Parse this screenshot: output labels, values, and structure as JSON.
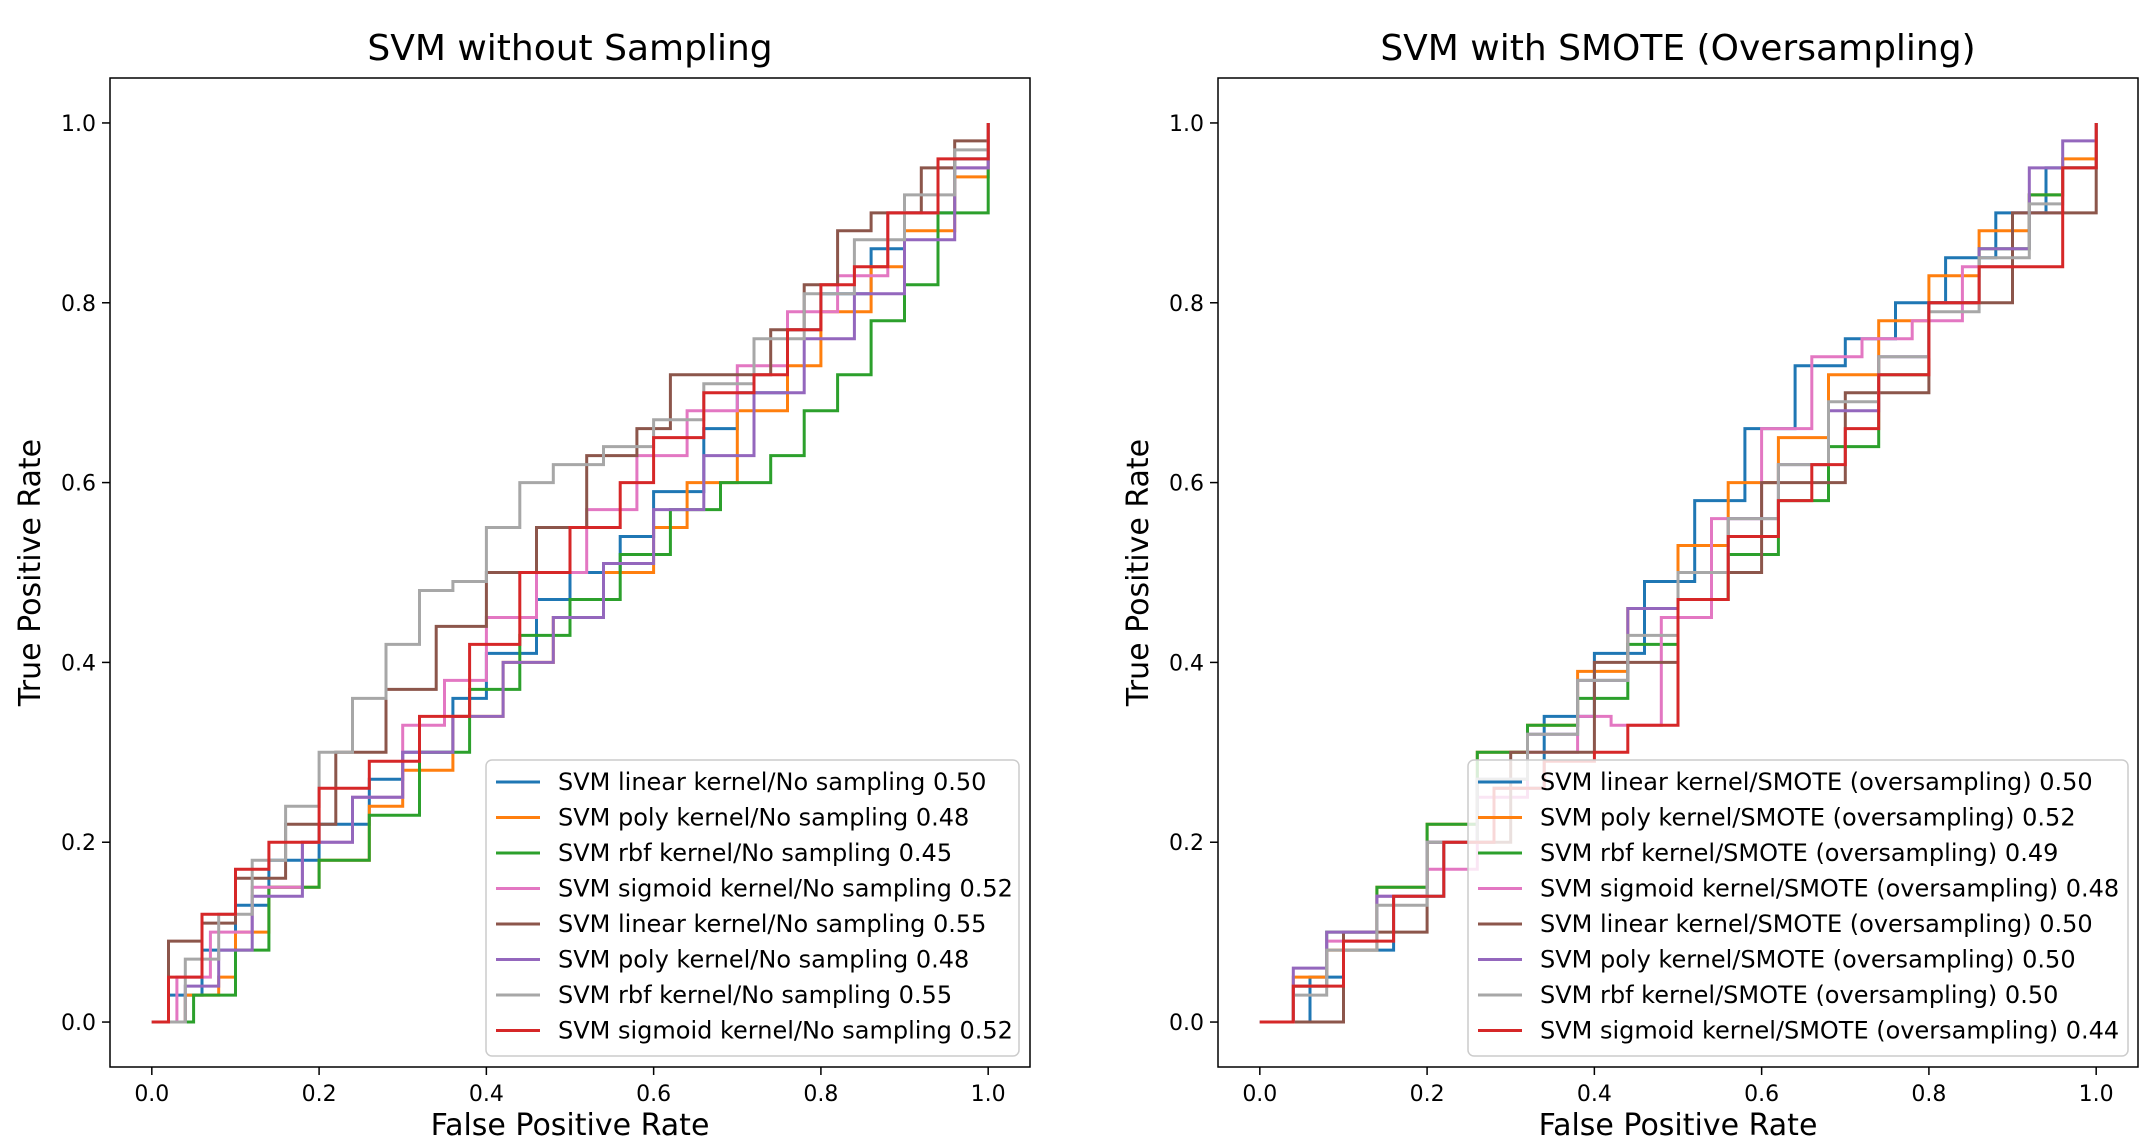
{
  "chart_data": [
    {
      "type": "line",
      "title": "SVM without Sampling",
      "xlabel": "False Positive Rate",
      "ylabel": "True Positive Rate",
      "xlim": [
        -0.05,
        1.05
      ],
      "ylim": [
        -0.05,
        1.05
      ],
      "xticks": [
        0.0,
        0.2,
        0.4,
        0.6,
        0.8,
        1.0
      ],
      "yticks": [
        0.0,
        0.2,
        0.4,
        0.6,
        0.8,
        1.0
      ],
      "tick_labels": [
        "0.0",
        "0.2",
        "0.4",
        "0.6",
        "0.8",
        "1.0"
      ],
      "grid": false,
      "legend_position": "lower-right",
      "series": [
        {
          "name": "SVM linear kernel/No sampling 0.50",
          "color": "#1f77b4",
          "x": [
            0.0,
            0.02,
            0.06,
            0.1,
            0.14,
            0.2,
            0.26,
            0.3,
            0.36,
            0.4,
            0.46,
            0.5,
            0.56,
            0.6,
            0.66,
            0.7,
            0.76,
            0.8,
            0.86,
            0.9,
            0.96,
            1.0
          ],
          "y": [
            0.0,
            0.03,
            0.08,
            0.13,
            0.18,
            0.22,
            0.27,
            0.3,
            0.36,
            0.41,
            0.47,
            0.5,
            0.54,
            0.59,
            0.66,
            0.7,
            0.77,
            0.81,
            0.86,
            0.9,
            0.96,
            1.0
          ]
        },
        {
          "name": "SVM poly kernel/No sampling 0.48",
          "color": "#ff7f0e",
          "x": [
            0.0,
            0.04,
            0.08,
            0.1,
            0.14,
            0.2,
            0.26,
            0.3,
            0.36,
            0.42,
            0.48,
            0.54,
            0.6,
            0.64,
            0.7,
            0.76,
            0.8,
            0.86,
            0.9,
            0.96,
            1.0
          ],
          "y": [
            0.0,
            0.03,
            0.05,
            0.1,
            0.15,
            0.18,
            0.24,
            0.28,
            0.34,
            0.4,
            0.45,
            0.5,
            0.55,
            0.6,
            0.68,
            0.73,
            0.79,
            0.84,
            0.88,
            0.94,
            1.0
          ]
        },
        {
          "name": "SVM rbf kernel/No sampling 0.45",
          "color": "#2ca02c",
          "x": [
            0.0,
            0.05,
            0.1,
            0.14,
            0.2,
            0.26,
            0.32,
            0.38,
            0.44,
            0.5,
            0.56,
            0.62,
            0.68,
            0.74,
            0.78,
            0.82,
            0.86,
            0.9,
            0.94,
            1.0
          ],
          "y": [
            0.0,
            0.03,
            0.08,
            0.15,
            0.18,
            0.23,
            0.3,
            0.37,
            0.43,
            0.47,
            0.52,
            0.57,
            0.6,
            0.63,
            0.68,
            0.72,
            0.78,
            0.82,
            0.9,
            0.98
          ]
        },
        {
          "name": "SVM sigmoid kernel/No sampling 0.52",
          "color": "#e377c2",
          "x": [
            0.0,
            0.03,
            0.07,
            0.12,
            0.18,
            0.24,
            0.3,
            0.35,
            0.4,
            0.46,
            0.52,
            0.58,
            0.64,
            0.7,
            0.76,
            0.82,
            0.88,
            0.94,
            1.0
          ],
          "y": [
            0.0,
            0.05,
            0.1,
            0.15,
            0.2,
            0.25,
            0.33,
            0.38,
            0.45,
            0.5,
            0.57,
            0.63,
            0.68,
            0.73,
            0.79,
            0.83,
            0.9,
            0.95,
            1.0
          ]
        },
        {
          "name": "SVM linear kernel/No sampling 0.55",
          "color": "#8c564b",
          "x": [
            0.0,
            0.02,
            0.06,
            0.1,
            0.16,
            0.22,
            0.28,
            0.34,
            0.4,
            0.46,
            0.52,
            0.58,
            0.62,
            0.68,
            0.74,
            0.78,
            0.82,
            0.86,
            0.92,
            0.96,
            1.0
          ],
          "y": [
            0.0,
            0.09,
            0.11,
            0.16,
            0.22,
            0.3,
            0.37,
            0.44,
            0.5,
            0.55,
            0.63,
            0.66,
            0.72,
            0.72,
            0.77,
            0.82,
            0.88,
            0.9,
            0.95,
            0.98,
            1.0
          ]
        },
        {
          "name": "SVM poly kernel/No sampling 0.48",
          "color": "#9467bd",
          "x": [
            0.0,
            0.04,
            0.08,
            0.12,
            0.18,
            0.24,
            0.3,
            0.36,
            0.42,
            0.48,
            0.54,
            0.6,
            0.66,
            0.72,
            0.78,
            0.84,
            0.9,
            0.96,
            1.0
          ],
          "y": [
            0.0,
            0.04,
            0.08,
            0.14,
            0.2,
            0.25,
            0.3,
            0.34,
            0.4,
            0.45,
            0.51,
            0.57,
            0.63,
            0.7,
            0.76,
            0.81,
            0.87,
            0.95,
            1.0
          ]
        },
        {
          "name": "SVM rbf kernel/No sampling 0.55",
          "color": "#a7a7a7",
          "x": [
            0.0,
            0.04,
            0.08,
            0.12,
            0.16,
            0.2,
            0.24,
            0.28,
            0.32,
            0.36,
            0.4,
            0.44,
            0.48,
            0.54,
            0.6,
            0.66,
            0.72,
            0.78,
            0.84,
            0.9,
            0.96,
            1.0
          ],
          "y": [
            0.0,
            0.07,
            0.12,
            0.18,
            0.24,
            0.3,
            0.36,
            0.42,
            0.48,
            0.49,
            0.55,
            0.6,
            0.62,
            0.64,
            0.67,
            0.71,
            0.76,
            0.81,
            0.87,
            0.92,
            0.97,
            1.0
          ]
        },
        {
          "name": "SVM sigmoid kernel/No sampling 0.52",
          "color": "#d62728",
          "x": [
            0.0,
            0.02,
            0.06,
            0.1,
            0.14,
            0.2,
            0.26,
            0.32,
            0.38,
            0.44,
            0.5,
            0.56,
            0.6,
            0.66,
            0.72,
            0.76,
            0.8,
            0.84,
            0.88,
            0.94,
            1.0
          ],
          "y": [
            0.0,
            0.05,
            0.12,
            0.17,
            0.2,
            0.26,
            0.29,
            0.34,
            0.42,
            0.5,
            0.55,
            0.6,
            0.65,
            0.7,
            0.72,
            0.77,
            0.82,
            0.84,
            0.9,
            0.96,
            1.0
          ]
        }
      ]
    },
    {
      "type": "line",
      "title": "SVM with SMOTE (Oversampling)",
      "xlabel": "False Positive Rate",
      "ylabel": "True Positive Rate",
      "xlim": [
        -0.05,
        1.05
      ],
      "ylim": [
        -0.05,
        1.05
      ],
      "xticks": [
        0.0,
        0.2,
        0.4,
        0.6,
        0.8,
        1.0
      ],
      "yticks": [
        0.0,
        0.2,
        0.4,
        0.6,
        0.8,
        1.0
      ],
      "tick_labels": [
        "0.0",
        "0.2",
        "0.4",
        "0.6",
        "0.8",
        "1.0"
      ],
      "grid": false,
      "legend_position": "lower-right",
      "series": [
        {
          "name": "SVM linear kernel/SMOTE (oversampling) 0.50",
          "color": "#1f77b4",
          "x": [
            0.0,
            0.04,
            0.06,
            0.1,
            0.16,
            0.22,
            0.28,
            0.34,
            0.4,
            0.46,
            0.52,
            0.58,
            0.64,
            0.7,
            0.76,
            0.82,
            0.88,
            0.94,
            1.0
          ],
          "y": [
            0.0,
            0.0,
            0.05,
            0.08,
            0.14,
            0.2,
            0.26,
            0.34,
            0.41,
            0.49,
            0.58,
            0.66,
            0.73,
            0.76,
            0.8,
            0.85,
            0.9,
            0.95,
            1.0
          ]
        },
        {
          "name": "SVM poly kernel/SMOTE (oversampling) 0.52",
          "color": "#ff7f0e",
          "x": [
            0.0,
            0.04,
            0.08,
            0.14,
            0.2,
            0.26,
            0.32,
            0.38,
            0.44,
            0.5,
            0.56,
            0.62,
            0.68,
            0.74,
            0.8,
            0.86,
            0.92,
            0.96,
            1.0
          ],
          "y": [
            0.0,
            0.05,
            0.08,
            0.15,
            0.22,
            0.3,
            0.33,
            0.39,
            0.46,
            0.53,
            0.6,
            0.65,
            0.72,
            0.78,
            0.83,
            0.88,
            0.92,
            0.96,
            1.0
          ]
        },
        {
          "name": "SVM rbf kernel/SMOTE (oversampling) 0.49",
          "color": "#2ca02c",
          "x": [
            0.0,
            0.04,
            0.08,
            0.14,
            0.2,
            0.26,
            0.32,
            0.38,
            0.44,
            0.5,
            0.56,
            0.62,
            0.68,
            0.74,
            0.8,
            0.86,
            0.92,
            0.96,
            1.0
          ],
          "y": [
            0.0,
            0.04,
            0.1,
            0.15,
            0.22,
            0.3,
            0.33,
            0.36,
            0.42,
            0.47,
            0.52,
            0.58,
            0.64,
            0.72,
            0.8,
            0.86,
            0.92,
            0.95,
            1.0
          ]
        },
        {
          "name": "SVM sigmoid kernel/SMOTE (oversampling) 0.48",
          "color": "#e377c2",
          "x": [
            0.0,
            0.04,
            0.08,
            0.14,
            0.2,
            0.26,
            0.32,
            0.38,
            0.42,
            0.48,
            0.54,
            0.6,
            0.66,
            0.72,
            0.78,
            0.84,
            0.9,
            0.96,
            1.0
          ],
          "y": [
            0.0,
            0.04,
            0.09,
            0.14,
            0.17,
            0.25,
            0.3,
            0.34,
            0.33,
            0.45,
            0.56,
            0.66,
            0.74,
            0.76,
            0.78,
            0.84,
            0.9,
            0.95,
            1.0
          ]
        },
        {
          "name": "SVM linear kernel/SMOTE (oversampling) 0.50",
          "color": "#8c564b",
          "x": [
            0.0,
            0.1,
            0.2,
            0.3,
            0.4,
            0.5,
            0.6,
            0.7,
            0.8,
            0.9,
            1.0
          ],
          "y": [
            0.0,
            0.1,
            0.2,
            0.3,
            0.4,
            0.5,
            0.6,
            0.7,
            0.8,
            0.9,
            1.0
          ]
        },
        {
          "name": "SVM poly kernel/SMOTE (oversampling) 0.50",
          "color": "#9467bd",
          "x": [
            0.0,
            0.04,
            0.08,
            0.14,
            0.2,
            0.26,
            0.32,
            0.38,
            0.44,
            0.5,
            0.56,
            0.62,
            0.68,
            0.74,
            0.8,
            0.86,
            0.92,
            0.96,
            1.0
          ],
          "y": [
            0.0,
            0.06,
            0.1,
            0.14,
            0.2,
            0.27,
            0.32,
            0.38,
            0.46,
            0.5,
            0.56,
            0.62,
            0.68,
            0.74,
            0.8,
            0.86,
            0.95,
            0.98,
            1.0
          ]
        },
        {
          "name": "SVM rbf kernel/SMOTE (oversampling) 0.50",
          "color": "#a7a7a7",
          "x": [
            0.0,
            0.04,
            0.08,
            0.14,
            0.2,
            0.26,
            0.32,
            0.38,
            0.44,
            0.5,
            0.56,
            0.62,
            0.68,
            0.74,
            0.8,
            0.86,
            0.92,
            0.96,
            1.0
          ],
          "y": [
            0.0,
            0.03,
            0.08,
            0.13,
            0.2,
            0.27,
            0.32,
            0.38,
            0.43,
            0.5,
            0.56,
            0.62,
            0.69,
            0.74,
            0.79,
            0.85,
            0.91,
            0.95,
            1.0
          ]
        },
        {
          "name": "SVM sigmoid kernel/SMOTE (oversampling) 0.44",
          "color": "#d62728",
          "x": [
            0.0,
            0.04,
            0.1,
            0.16,
            0.22,
            0.28,
            0.34,
            0.4,
            0.44,
            0.5,
            0.56,
            0.62,
            0.66,
            0.7,
            0.74,
            0.8,
            0.86,
            0.94,
            0.96,
            1.0
          ],
          "y": [
            0.0,
            0.04,
            0.09,
            0.14,
            0.2,
            0.26,
            0.29,
            0.3,
            0.33,
            0.47,
            0.54,
            0.58,
            0.62,
            0.66,
            0.72,
            0.8,
            0.84,
            0.84,
            0.95,
            1.0
          ]
        }
      ]
    }
  ]
}
